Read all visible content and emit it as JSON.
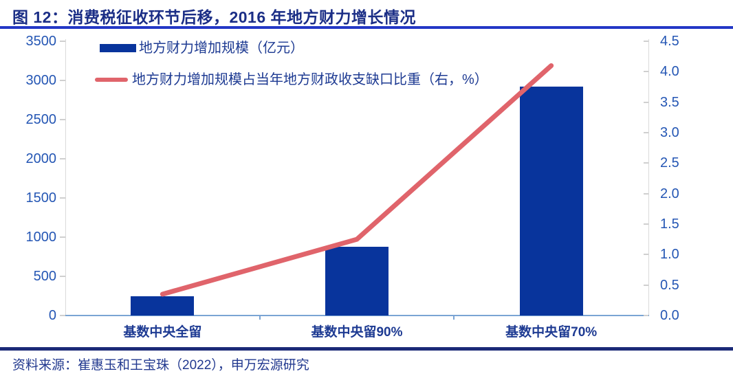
{
  "header": {
    "title": "图 12：消费税征收环节后移，2016 年地方财力增长情况"
  },
  "footer": {
    "source": "资料来源：崔惠玉和王宝珠（2022），申万宏源研究"
  },
  "colors": {
    "bar": "#08349c",
    "line": "#e0646b",
    "title_text": "#1b2e86",
    "title_rule": "#2337c6",
    "axis_number_text": "#2456b4",
    "category_text": "#1d3a92",
    "x_axis_line": "#7aa4d4",
    "y_axis_line": "#d9d9d9",
    "bottom_divider": "#1b2a78"
  },
  "chart_data": {
    "type": "bar",
    "subtype": "bar-line-combo-dual-axis",
    "title": "图 12：消费税征收环节后移，2016 年地方财力增长情况",
    "categories": [
      "基数中央全留",
      "基数中央留90%",
      "基数中央留70%"
    ],
    "series": [
      {
        "name": "地方财力增加规模（亿元）",
        "type": "bar",
        "axis": "left",
        "values": [
          245,
          880,
          2920
        ],
        "color": "#08349c"
      },
      {
        "name": "地方财力增加规模占当年地方财政收支缺口比重（右，%）",
        "type": "line",
        "axis": "right",
        "values": [
          0.35,
          1.25,
          4.1
        ],
        "color": "#e0646b"
      }
    ],
    "left_axis": {
      "min": 0,
      "max": 3500,
      "step": 500,
      "tick_labels": [
        "0",
        "500",
        "1000",
        "1500",
        "2000",
        "2500",
        "3000",
        "3500"
      ]
    },
    "right_axis": {
      "min": 0,
      "max": 4.5,
      "step": 0.5,
      "tick_labels": [
        "0.0",
        "0.5",
        "1.0",
        "1.5",
        "2.0",
        "2.5",
        "3.0",
        "3.5",
        "4.0",
        "4.5"
      ]
    },
    "grid": false,
    "legend_position": "top-left-inside"
  }
}
